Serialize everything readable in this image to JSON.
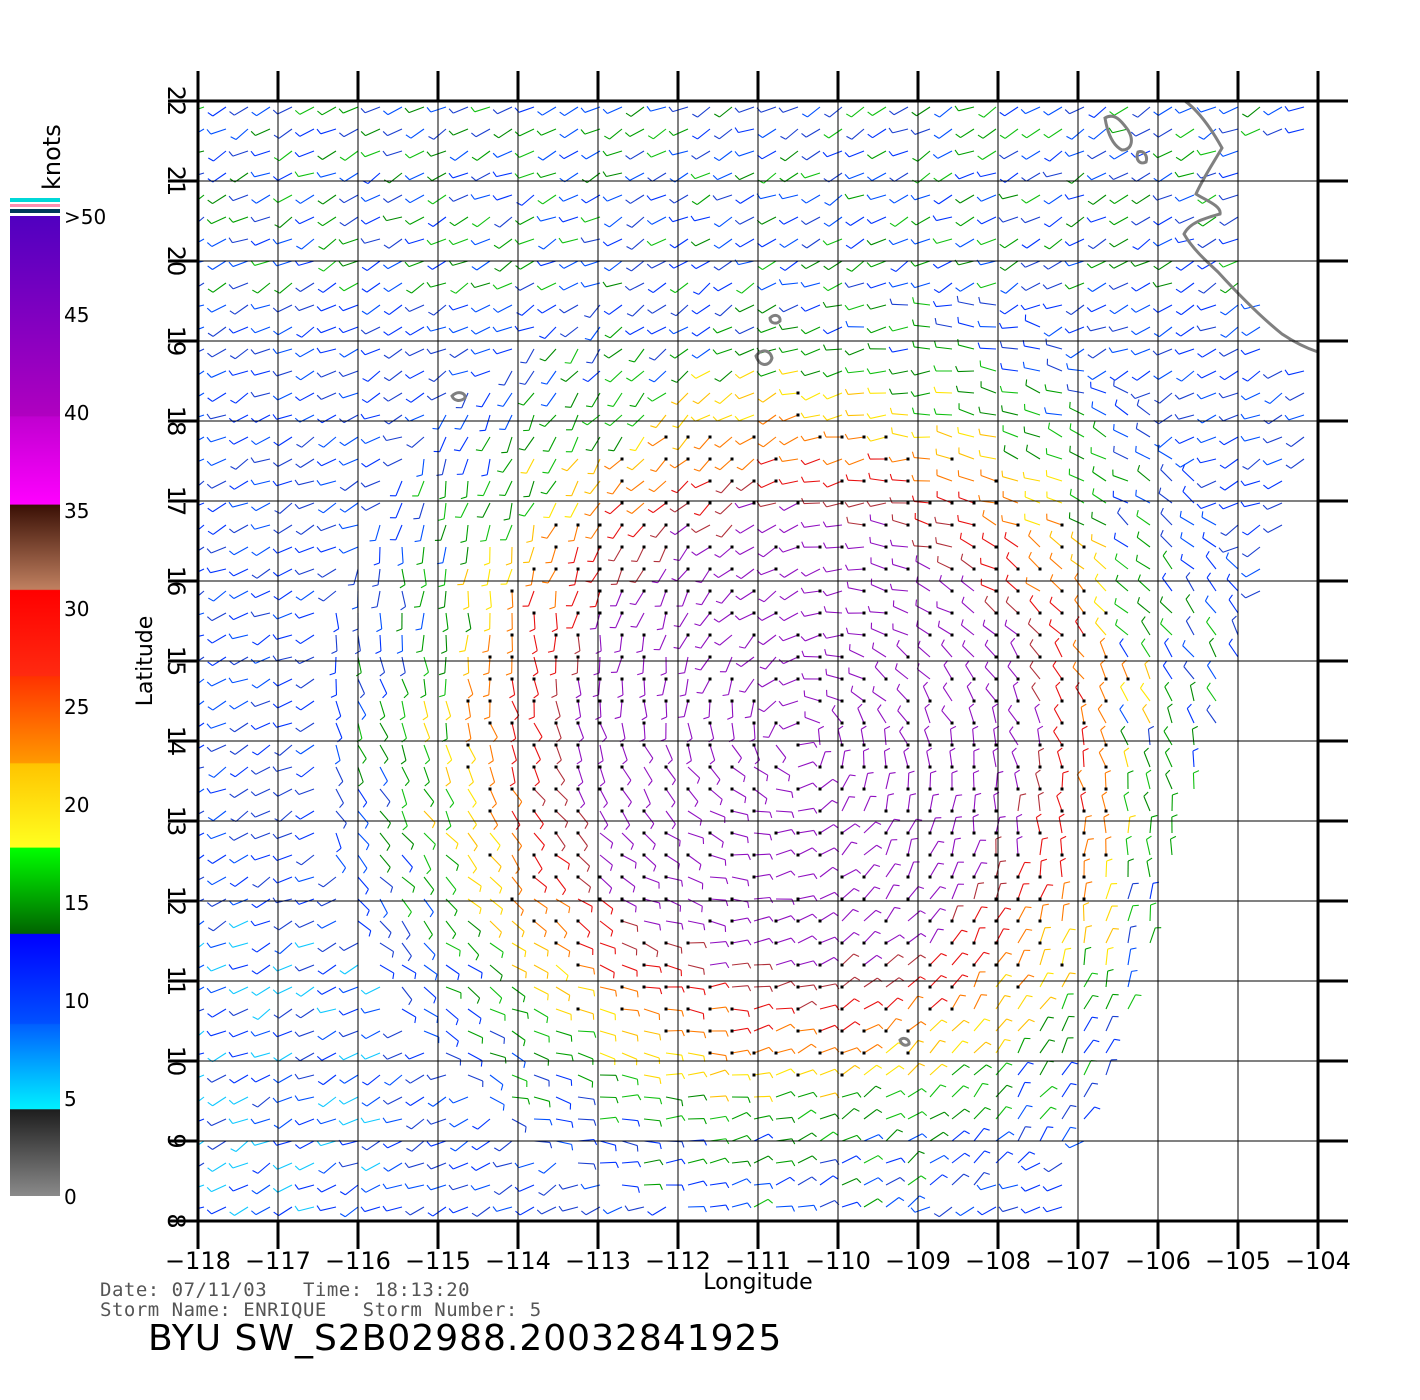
{
  "map": {
    "xlabel": "Longitude",
    "ylabel": "Latitude",
    "lon_range": [
      -118,
      -104
    ],
    "lat_range": [
      8,
      22
    ],
    "lon_ticks": [
      "−118",
      "−117",
      "−116",
      "−115",
      "−114",
      "−113",
      "−112",
      "−111",
      "−110",
      "−109",
      "−108",
      "−107",
      "−106",
      "−105",
      "−104"
    ],
    "lat_ticks": [
      "8",
      "9",
      "10",
      "11",
      "12",
      "13",
      "14",
      "15",
      "16",
      "17",
      "18",
      "19",
      "20",
      "21",
      "22"
    ],
    "grid": true,
    "coastline_color": "#808080",
    "vector_field": "wind barbs (speed-coloured)",
    "storm_center_approx": {
      "lon": -110.5,
      "lat": 14.0
    }
  },
  "color_scale": {
    "unit": "knots",
    "labels": [
      ">50",
      "45",
      "40",
      "35",
      "30",
      "25",
      "20",
      "15",
      "10",
      "5",
      "0"
    ],
    "bands": [
      {
        "from": 0,
        "to": 5,
        "colors": [
          "#8a8a8a",
          "#1e1e1e"
        ]
      },
      {
        "from": 5,
        "to": 10,
        "colors": [
          "#00f0ff",
          "#0060ff"
        ]
      },
      {
        "from": 10,
        "to": 15,
        "colors": [
          "#0050ff",
          "#0000ff"
        ]
      },
      {
        "from": 15,
        "to": 20,
        "colors": [
          "#006400",
          "#00ff00"
        ]
      },
      {
        "from": 20,
        "to": 25,
        "colors": [
          "#ffff20",
          "#ffc400"
        ]
      },
      {
        "from": 25,
        "to": 30,
        "colors": [
          "#ff9900",
          "#ff3300"
        ]
      },
      {
        "from": 30,
        "to": 35,
        "colors": [
          "#ff2a10",
          "#ff0000"
        ]
      },
      {
        "from": 35,
        "to": 40,
        "colors": [
          "#c08060",
          "#3a1005"
        ]
      },
      {
        "from": 40,
        "to": 45,
        "colors": [
          "#ff00ff",
          "#c000d0"
        ]
      },
      {
        "from": 45,
        "to": 50,
        "colors": [
          "#b000c0",
          "#5000c0"
        ]
      }
    ]
  },
  "info": {
    "date_line": "Date: 07/11/03   Time: 18:13:20",
    "storm_line": "Storm Name: ENRIQUE   Storm Number: 5",
    "file_id": "BYU SW_S2B02988.20032841925"
  }
}
